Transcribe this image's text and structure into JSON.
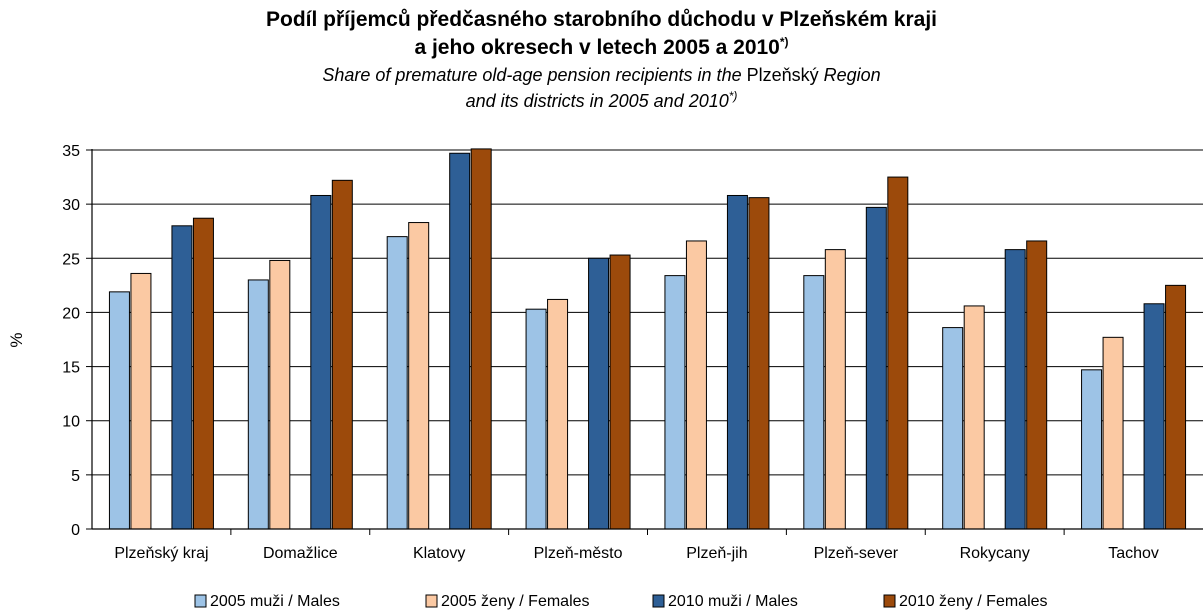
{
  "chart_data": {
    "type": "bar",
    "title_cz_line1": "Podíl příjemců předčasného starobního důchodu v Plzeňském kraji",
    "title_cz_line2": "a jeho okresech v letech 2005 a 2010",
    "title_sup": "*)",
    "title_en_line1_a": "Share of premature old-age pension recipients in the ",
    "title_en_line1_b": "Plzeňský",
    "title_en_line1_c": " Region",
    "title_en_line2": "and its districts in 2005 and 2010",
    "ylabel": "%",
    "xlabel": "",
    "ylim": [
      0,
      35
    ],
    "yticks": [
      0,
      5,
      10,
      15,
      20,
      25,
      30,
      35
    ],
    "grid": true,
    "legend_position": "bottom",
    "categories": [
      "Plzeňský kraj",
      "Domažlice",
      "Klatovy",
      "Plzeň-město",
      "Plzeň-jih",
      "Plzeň-sever",
      "Rokycany",
      "Tachov"
    ],
    "series": [
      {
        "name": "2005 muži / Males",
        "color": "#9dc3e6",
        "values": [
          21.9,
          23.0,
          27.0,
          20.3,
          23.4,
          23.4,
          18.6,
          14.7
        ]
      },
      {
        "name": "2005 ženy / Females",
        "color": "#fbc9a3",
        "values": [
          23.6,
          24.8,
          28.3,
          21.2,
          26.6,
          25.8,
          20.6,
          17.7
        ]
      },
      {
        "name": "2010 muži / Males",
        "color": "#2e5f96",
        "values": [
          28.0,
          30.8,
          34.7,
          25.0,
          30.8,
          29.7,
          25.8,
          20.8
        ]
      },
      {
        "name": "2010 ženy / Females",
        "color": "#9c4a0b",
        "values": [
          28.7,
          32.2,
          35.1,
          25.3,
          30.6,
          32.5,
          26.6,
          22.5
        ]
      }
    ]
  }
}
